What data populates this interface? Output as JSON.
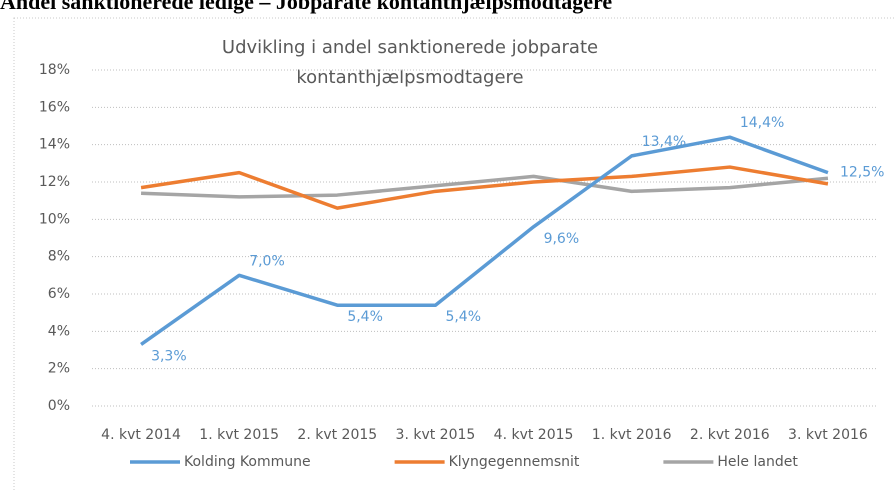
{
  "header": "Andel sanktionerede ledige – Jobparate kontanthjælpsmodtagere",
  "chart_data": {
    "type": "line",
    "title": "Udvikling i andel sanktionerede jobparate kontanthjælpsmodtagere",
    "categories": [
      "4. kvt 2014",
      "1. kvt 2015",
      "2. kvt 2015",
      "3. kvt 2015",
      "4. kvt 2015",
      "1. kvt 2016",
      "2. kvt 2016",
      "3. kvt 2016"
    ],
    "series": [
      {
        "name": "Kolding Kommune",
        "color": "#5b9bd5",
        "values": [
          3.3,
          7.0,
          5.4,
          5.4,
          9.6,
          13.4,
          14.4,
          12.5
        ],
        "value_labels": [
          "3,3%",
          "7,0%",
          "5,4%",
          "5,4%",
          "9,6%",
          "13,4%",
          "14,4%",
          "12,5%"
        ]
      },
      {
        "name": "Klyngegennemsnit",
        "color": "#ed7d31",
        "values": [
          11.7,
          12.5,
          10.6,
          11.5,
          12.0,
          12.3,
          12.8,
          11.9
        ]
      },
      {
        "name": "Hele landet",
        "color": "#a5a5a5",
        "values": [
          11.4,
          11.2,
          11.3,
          11.8,
          12.3,
          11.5,
          11.7,
          12.2
        ]
      }
    ],
    "ylim": [
      0,
      18
    ],
    "yticks": [
      {
        "value": 0,
        "label": "0%"
      },
      {
        "value": 2,
        "label": "2%"
      },
      {
        "value": 4,
        "label": "4%"
      },
      {
        "value": 6,
        "label": "6%"
      },
      {
        "value": 8,
        "label": "8%"
      },
      {
        "value": 10,
        "label": "10%"
      },
      {
        "value": 12,
        "label": "12%"
      },
      {
        "value": 14,
        "label": "14%"
      },
      {
        "value": 16,
        "label": "16%"
      },
      {
        "value": 18,
        "label": "18%"
      }
    ],
    "grid": true,
    "legend": "bottom"
  }
}
